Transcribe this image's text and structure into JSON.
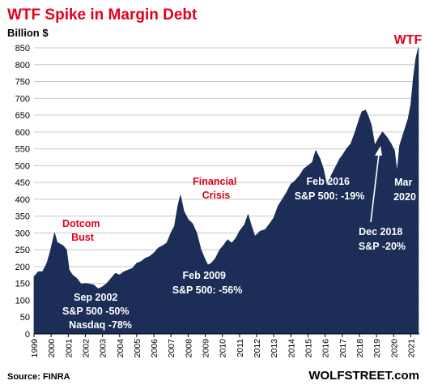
{
  "colors": {
    "area": "#1c2e57",
    "accent": "#e3001b",
    "grid": "#c8c8c8",
    "annotation": "#ffffff"
  },
  "chart_data": {
    "type": "area",
    "title": "WTF Spike in Margin Debt",
    "ylabel": "Billion $",
    "ylim": [
      0,
      850
    ],
    "yticks": [
      0,
      50,
      100,
      150,
      200,
      250,
      300,
      350,
      400,
      450,
      500,
      550,
      600,
      650,
      700,
      750,
      800,
      850
    ],
    "xlim": [
      1999.0,
      2021.5
    ],
    "xtick_labels": [
      "1999",
      "2000",
      "2001",
      "2002",
      "2003",
      "2004",
      "2005",
      "2006",
      "2007",
      "2008",
      "2009",
      "2010",
      "2011",
      "2012",
      "2013",
      "2014",
      "2015",
      "2016",
      "2017",
      "2018",
      "2019",
      "2020",
      "2021"
    ],
    "grid": true,
    "legend": "none",
    "series": [
      {
        "x": [
          1999.0,
          1999.25,
          1999.5,
          1999.75,
          1999.95,
          2000.1,
          2000.2,
          2000.35,
          2000.5,
          2000.7,
          2000.9,
          2001.05,
          2001.25,
          2001.5,
          2001.75,
          2002.0,
          2002.25,
          2002.5,
          2002.75,
          2003.0,
          2003.25,
          2003.5,
          2003.75,
          2004.0,
          2004.25,
          2004.5,
          2004.75,
          2005.0,
          2005.25,
          2005.5,
          2005.75,
          2006.0,
          2006.25,
          2006.5,
          2006.75,
          2007.0,
          2007.2,
          2007.4,
          2007.55,
          2007.75,
          2008.0,
          2008.25,
          2008.5,
          2008.75,
          2009.0,
          2009.15,
          2009.35,
          2009.6,
          2009.85,
          2010.1,
          2010.3,
          2010.55,
          2010.8,
          2011.0,
          2011.3,
          2011.5,
          2011.7,
          2011.9,
          2012.2,
          2012.5,
          2012.8,
          2013.0,
          2013.25,
          2013.5,
          2013.75,
          2014.0,
          2014.25,
          2014.5,
          2014.75,
          2015.0,
          2015.25,
          2015.45,
          2015.7,
          2015.9,
          2016.1,
          2016.35,
          2016.6,
          2016.85,
          2017.0,
          2017.25,
          2017.5,
          2017.75,
          2018.0,
          2018.15,
          2018.35,
          2018.5,
          2018.7,
          2018.9,
          2019.1,
          2019.35,
          2019.6,
          2019.85,
          2020.05,
          2020.2,
          2020.35,
          2020.6,
          2020.85,
          2021.0,
          2021.15,
          2021.3,
          2021.45
        ],
        "values": [
          170,
          185,
          185,
          210,
          245,
          278,
          300,
          272,
          268,
          262,
          250,
          190,
          175,
          165,
          148,
          150,
          148,
          145,
          134,
          140,
          150,
          165,
          180,
          175,
          185,
          190,
          195,
          210,
          215,
          225,
          230,
          240,
          255,
          262,
          270,
          300,
          320,
          380,
          412,
          365,
          340,
          328,
          300,
          250,
          220,
          205,
          210,
          225,
          250,
          265,
          280,
          270,
          285,
          305,
          325,
          355,
          320,
          290,
          305,
          310,
          330,
          345,
          380,
          400,
          420,
          445,
          455,
          470,
          490,
          500,
          510,
          545,
          520,
          490,
          440,
          470,
          495,
          520,
          530,
          550,
          565,
          600,
          640,
          660,
          665,
          650,
          620,
          560,
          580,
          600,
          585,
          565,
          545,
          480,
          560,
          600,
          640,
          680,
          760,
          820,
          850
        ]
      }
    ],
    "annotations": [
      {
        "lines": [
          "Dotcom",
          "Bust"
        ],
        "color": "red"
      },
      {
        "lines": [
          "Financial",
          "Crisis"
        ],
        "color": "red"
      },
      {
        "lines": [
          "Sep 2002",
          "S&P 500 -50%",
          "Nasdaq -78%"
        ],
        "color": "white"
      },
      {
        "lines": [
          "Feb 2009",
          "S&P 500: -56%"
        ],
        "color": "white"
      },
      {
        "lines": [
          "Feb 2016",
          "S&P 500: -19%"
        ],
        "color": "white"
      },
      {
        "lines": [
          "Dec 2018",
          "S&P -20%"
        ],
        "color": "white"
      },
      {
        "lines": [
          "Mar",
          "2020"
        ],
        "color": "white"
      },
      {
        "lines": [
          "WTF"
        ],
        "color": "red"
      }
    ],
    "source": "Source: FINRA",
    "brand": "WOLFSTREET.com"
  }
}
